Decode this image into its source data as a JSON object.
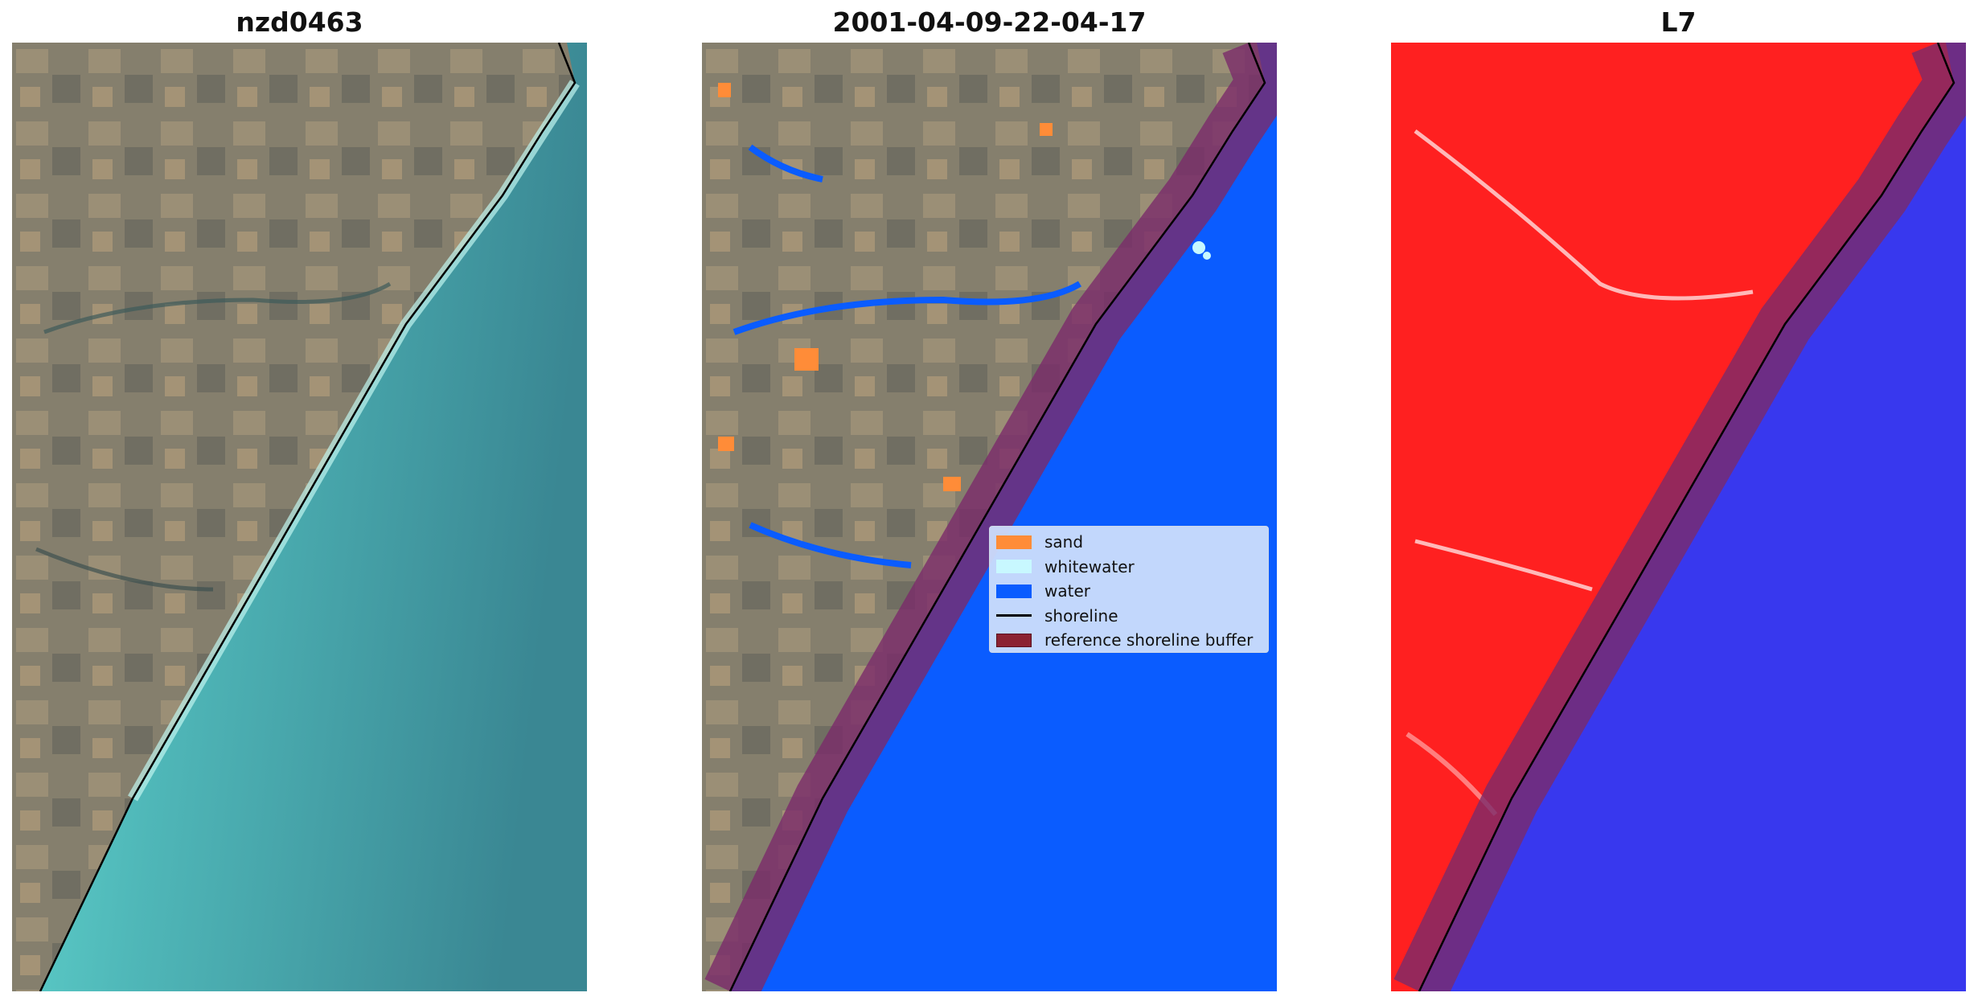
{
  "panels": [
    {
      "title": "nzd0463"
    },
    {
      "title": "2001-04-09-22-04-17"
    },
    {
      "title": "L7"
    }
  ],
  "legend": {
    "items": [
      {
        "label": "sand",
        "color": "#ff8c38"
      },
      {
        "label": "whitewater",
        "color": "#c8f8ff"
      },
      {
        "label": "water",
        "color": "#0a5cff"
      },
      {
        "label": "shoreline",
        "color": "#000000"
      },
      {
        "label": "reference shoreline buffer",
        "color": "#8b2232"
      }
    ]
  },
  "colors": {
    "land": "#8c8570",
    "sea_shallow": "#5ccdcc",
    "sea_deep": "#3b8a94",
    "water_class": "#0a5cff",
    "nir_land": "#ff2020",
    "nir_water": "#3838ee",
    "buffer": "#7a2a6a"
  }
}
